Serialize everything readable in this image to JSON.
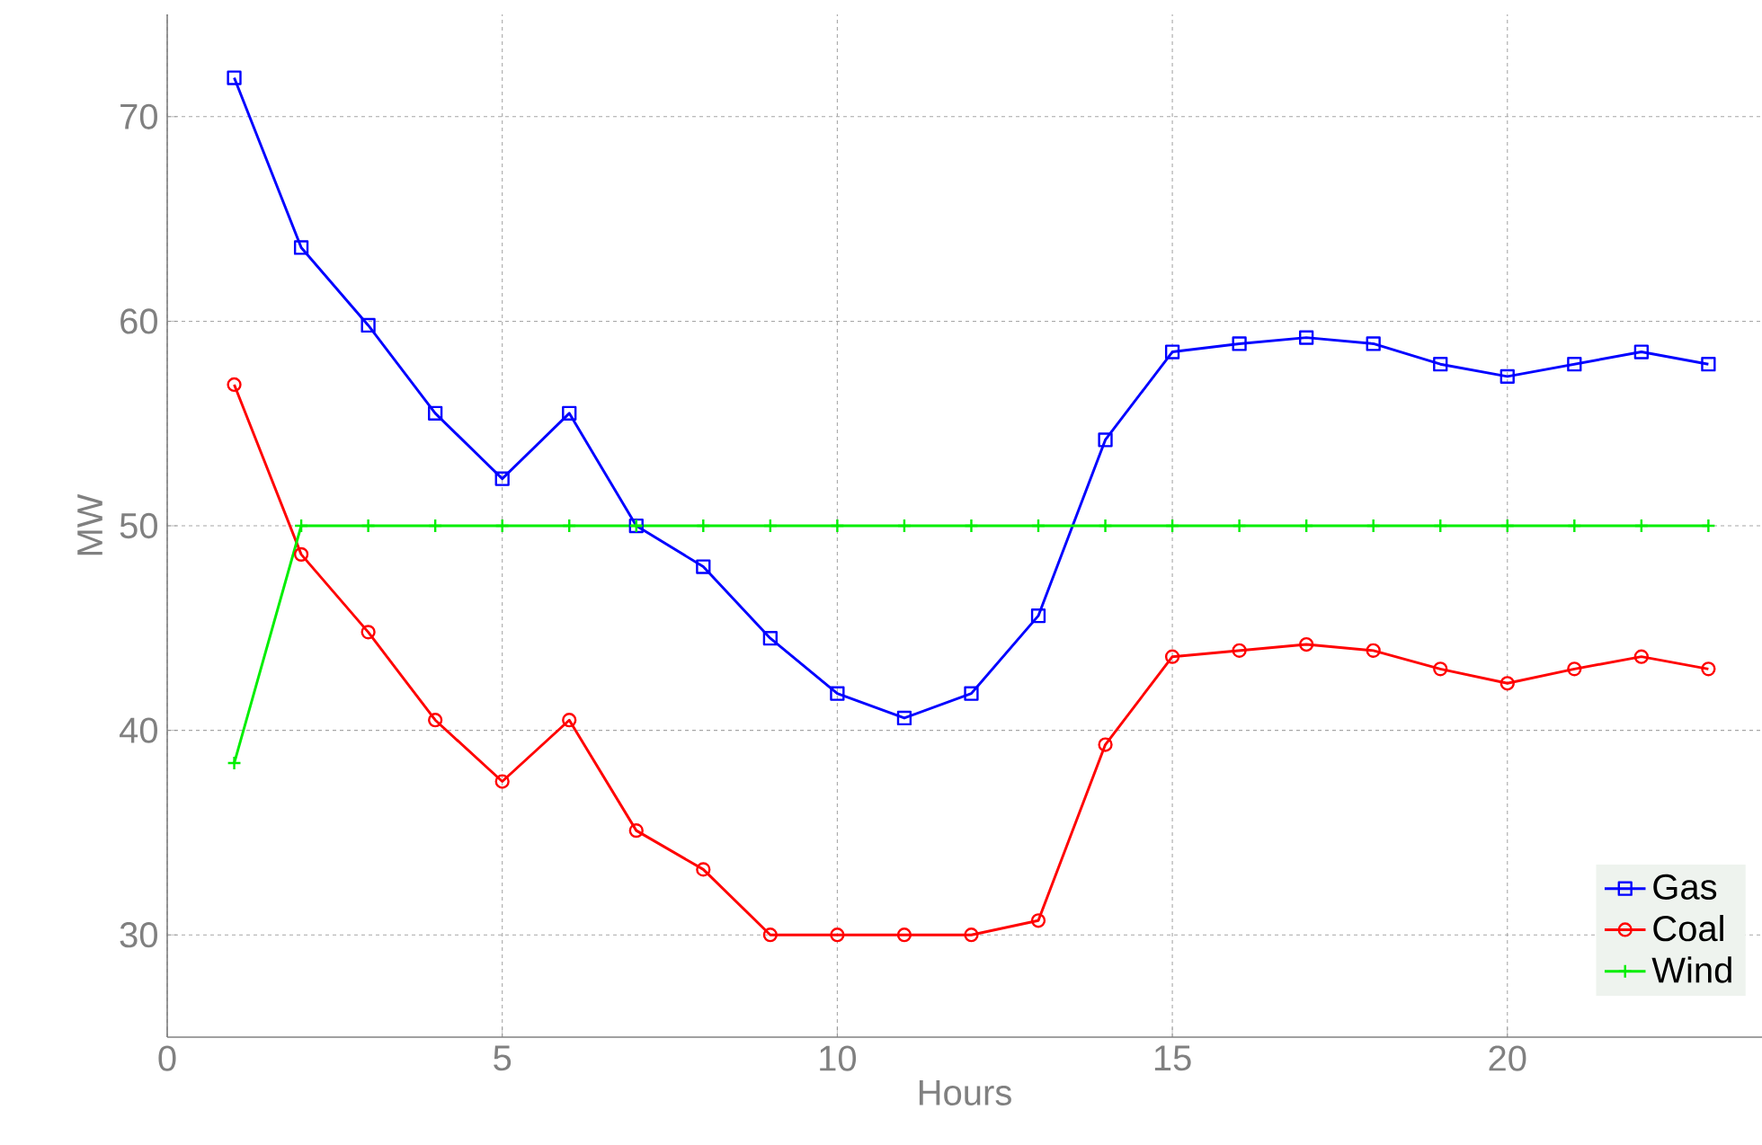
{
  "chart_data": {
    "type": "line",
    "xlabel": "Hours",
    "ylabel": "MW",
    "x": [
      1,
      2,
      3,
      4,
      5,
      6,
      7,
      8,
      9,
      10,
      11,
      12,
      13,
      14,
      15,
      16,
      17,
      18,
      19,
      20,
      21,
      22,
      23
    ],
    "series": [
      {
        "name": "Gas",
        "color": "#0000ff",
        "marker": "square",
        "values": [
          71.9,
          63.6,
          59.8,
          55.5,
          52.3,
          55.5,
          50,
          48,
          44.5,
          41.8,
          40.6,
          41.8,
          45.6,
          54.2,
          58.5,
          58.9,
          59.2,
          58.9,
          57.9,
          57.3,
          57.9,
          58.5,
          57.9
        ]
      },
      {
        "name": "Coal",
        "color": "#ff0000",
        "marker": "circle",
        "values": [
          56.9,
          48.6,
          44.8,
          40.5,
          37.5,
          40.5,
          35.1,
          33.2,
          30,
          30,
          30,
          30,
          30.7,
          39.3,
          43.6,
          43.9,
          44.2,
          43.9,
          43,
          42.3,
          43,
          43.6,
          43
        ]
      },
      {
        "name": "Wind",
        "color": "#00ee00",
        "marker": "cross",
        "values": [
          38.4,
          50,
          50,
          50,
          50,
          50,
          50,
          50,
          50,
          50,
          50,
          50,
          50,
          50,
          50,
          50,
          50,
          50,
          50,
          50,
          50,
          50,
          50
        ]
      }
    ],
    "xlim": [
      0,
      23.8
    ],
    "ylim": [
      25,
      75
    ],
    "xticks": [
      0,
      5,
      10,
      15,
      20
    ],
    "yticks": [
      30,
      40,
      50,
      60,
      70
    ],
    "grid": true,
    "legend": "bottom right",
    "line_style": "solid"
  }
}
